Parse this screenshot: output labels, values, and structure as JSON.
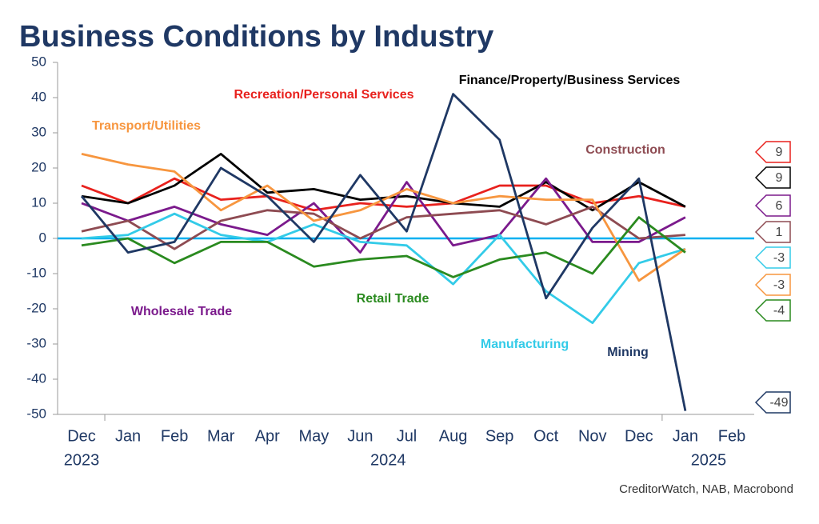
{
  "chart_data": {
    "type": "line",
    "title": "Business Conditions by Industry",
    "source": "CreditorWatch, NAB, Macrobond",
    "categories": [
      "Dec",
      "Jan",
      "Feb",
      "Mar",
      "Apr",
      "May",
      "Jun",
      "Jul",
      "Aug",
      "Sep",
      "Oct",
      "Nov",
      "Dec",
      "Jan",
      "Feb"
    ],
    "year_labels": [
      "2023",
      "2024",
      "2025"
    ],
    "ylim": [
      -50,
      50
    ],
    "yticks": [
      -50,
      -40,
      -30,
      -20,
      -10,
      0,
      10,
      20,
      30,
      40,
      50
    ],
    "zero_line_color": "#00b0f0",
    "series": [
      {
        "name": "Recreation/Personal Services",
        "color": "#e8211d",
        "values": [
          15,
          10,
          17,
          11,
          12,
          8,
          10,
          9,
          10,
          15,
          15,
          10,
          12,
          9,
          null
        ]
      },
      {
        "name": "Finance/Property/Business Services",
        "color": "#000000",
        "values": [
          12,
          10,
          15,
          24,
          13,
          14,
          11,
          12,
          10,
          9,
          16,
          8,
          16,
          9,
          null
        ]
      },
      {
        "name": "Wholesale Trade",
        "color": "#7b1a8c",
        "values": [
          10,
          5,
          9,
          4,
          1,
          10,
          -4,
          16,
          -2,
          1,
          17,
          -1,
          -1,
          6,
          null
        ]
      },
      {
        "name": "Construction",
        "color": "#8e4b52",
        "values": [
          2,
          5,
          -3,
          5,
          8,
          7,
          0,
          6,
          7,
          8,
          4,
          9,
          0,
          1,
          null
        ]
      },
      {
        "name": "Manufacturing",
        "color": "#33cbe8",
        "values": [
          0,
          1,
          7,
          1,
          -1,
          4,
          -1,
          -2,
          -13,
          1,
          -15,
          -24,
          -7,
          -3,
          null
        ]
      },
      {
        "name": "Transport/Utilities",
        "color": "#f7963f",
        "values": [
          24,
          21,
          19,
          8,
          15,
          5,
          8,
          14,
          10,
          12,
          11,
          11,
          -12,
          -3,
          null
        ]
      },
      {
        "name": "Retail Trade",
        "color": "#2a8a1f",
        "values": [
          -2,
          0,
          -7,
          -1,
          -1,
          -8,
          -6,
          -5,
          -11,
          -6,
          -4,
          -10,
          6,
          -4,
          null
        ]
      },
      {
        "name": "Mining",
        "color": "#1f3864",
        "values": [
          12,
          -4,
          -1,
          20,
          12,
          -1,
          18,
          2,
          41,
          28,
          -17,
          3,
          17,
          -49,
          null
        ]
      }
    ]
  }
}
